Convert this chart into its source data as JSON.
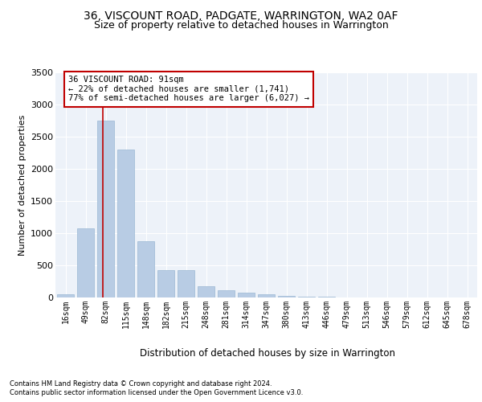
{
  "title": "36, VISCOUNT ROAD, PADGATE, WARRINGTON, WA2 0AF",
  "subtitle": "Size of property relative to detached houses in Warrington",
  "xlabel": "Distribution of detached houses by size in Warrington",
  "ylabel": "Number of detached properties",
  "categories": [
    "16sqm",
    "49sqm",
    "82sqm",
    "115sqm",
    "148sqm",
    "182sqm",
    "215sqm",
    "248sqm",
    "281sqm",
    "314sqm",
    "347sqm",
    "380sqm",
    "413sqm",
    "446sqm",
    "479sqm",
    "513sqm",
    "546sqm",
    "579sqm",
    "612sqm",
    "645sqm",
    "678sqm"
  ],
  "values": [
    50,
    1080,
    2750,
    2300,
    870,
    420,
    420,
    175,
    110,
    75,
    50,
    30,
    18,
    10,
    5,
    3,
    2,
    1,
    1,
    0,
    0
  ],
  "bar_color": "#b8cce4",
  "bar_edge_color": "#9ab8d4",
  "vline_color": "#c00000",
  "vline_x": 1.87,
  "annotation_text": "36 VISCOUNT ROAD: 91sqm\n← 22% of detached houses are smaller (1,741)\n77% of semi-detached houses are larger (6,027) →",
  "annotation_box_color": "#ffffff",
  "annotation_box_edge": "#c00000",
  "ylim": [
    0,
    3500
  ],
  "yticks": [
    0,
    500,
    1000,
    1500,
    2000,
    2500,
    3000,
    3500
  ],
  "axes_bg_color": "#edf2f9",
  "grid_color": "#ffffff",
  "footer_line1": "Contains HM Land Registry data © Crown copyright and database right 2024.",
  "footer_line2": "Contains public sector information licensed under the Open Government Licence v3.0.",
  "title_fontsize": 10,
  "subtitle_fontsize": 9,
  "xlabel_fontsize": 8.5,
  "ylabel_fontsize": 8,
  "tick_fontsize": 7,
  "footer_fontsize": 6,
  "annotation_fontsize": 7.5
}
